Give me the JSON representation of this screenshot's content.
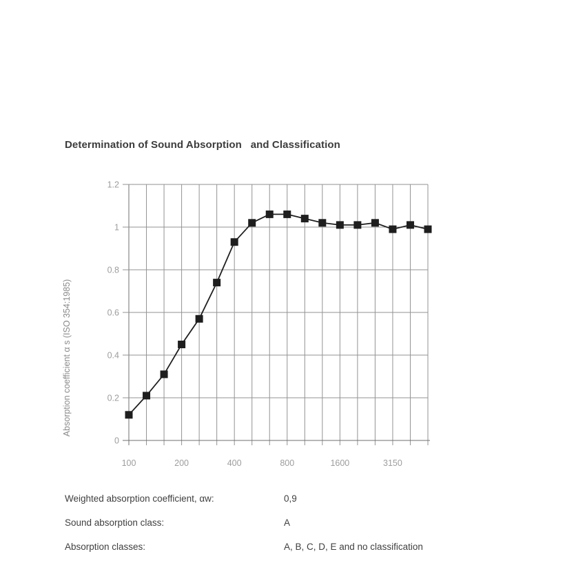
{
  "page": {
    "title": "Determination of Sound Absorption   and Classification"
  },
  "chart_data": {
    "type": "line",
    "title": "",
    "xlabel": "",
    "ylabel": "Absorption coefficient α s (ISO 354:1985)",
    "ylim": [
      0,
      1.2
    ],
    "yticks": [
      0,
      0.2,
      0.4,
      0.6,
      0.8,
      1,
      1.2
    ],
    "ytick_labels": [
      "0",
      "0.2",
      "0.4",
      "0.6",
      "0.8",
      "1",
      "1.2"
    ],
    "x": [
      100,
      125,
      160,
      200,
      250,
      315,
      400,
      500,
      630,
      800,
      1000,
      1250,
      1600,
      2000,
      2500,
      3150,
      4000,
      5000
    ],
    "x_categories": [
      "100",
      "125",
      "160",
      "200",
      "250",
      "315",
      "400",
      "500",
      "630",
      "800",
      "1000",
      "1250",
      "1600",
      "2000",
      "2500",
      "3150",
      "4000",
      "5000"
    ],
    "x_labeled": [
      "100",
      "200",
      "400",
      "800",
      "1600",
      "3150"
    ],
    "grid": true,
    "legend": "none",
    "series": [
      {
        "name": "Absorption coefficient αs",
        "marker": "square",
        "color": "#1e1e1e",
        "values": [
          0.12,
          0.21,
          0.31,
          0.45,
          0.57,
          0.74,
          0.93,
          1.02,
          1.06,
          1.06,
          1.04,
          1.02,
          1.01,
          1.01,
          1.02,
          0.99,
          1.01,
          0.99
        ]
      }
    ],
    "colors": {
      "grid": "#929292",
      "axis": "#6f6f6f",
      "tick_text": "#9d9d9d",
      "ylabel_text": "#8a8a8a"
    }
  },
  "results": {
    "rows": [
      {
        "label": "Weighted absorption coefficient, αw:",
        "value": "0,9"
      },
      {
        "label": "Sound absorption class:",
        "value": "A"
      },
      {
        "label": "Absorption classes:",
        "value": "A, B, C, D, E and no classification"
      }
    ]
  }
}
